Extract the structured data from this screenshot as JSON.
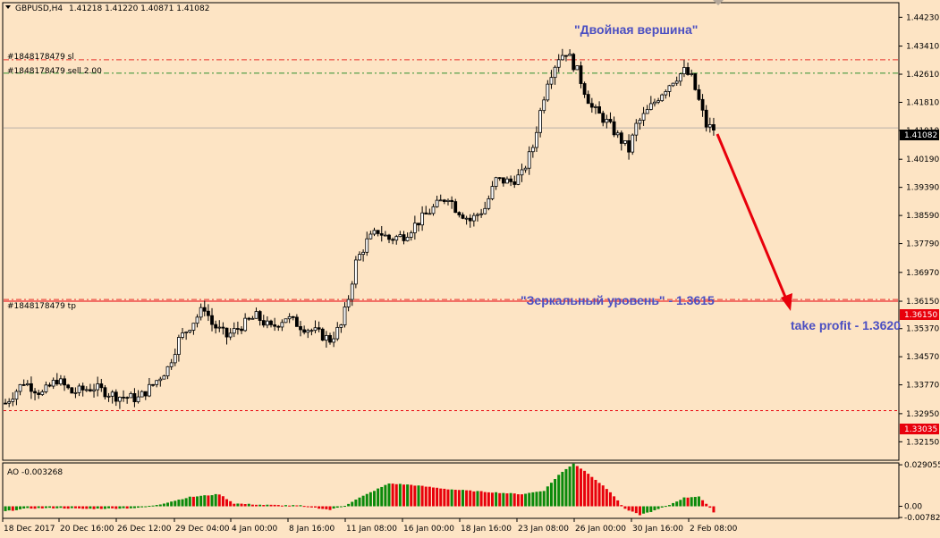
{
  "header": {
    "symbol": "GBPUSD,H4",
    "ohlc": "1.41218 1.41220 1.40871 1.41082"
  },
  "orders": {
    "sl": {
      "label": "#1848178479 sl",
      "price": 1.4302,
      "color": "#e8302a"
    },
    "sell": {
      "label": "#1848178479 sell 2.00",
      "price": 1.4264,
      "color": "#2f8f2f"
    },
    "tp": {
      "label": "#1848178479 tp",
      "price": 1.362,
      "color": "#e8302a"
    }
  },
  "levels": {
    "current": {
      "price": 1.41082,
      "label": "1.41082",
      "bg": "#000000"
    },
    "mirror": {
      "price": 1.3615,
      "label": "1.36150",
      "bg": "#e8000b"
    },
    "support": {
      "price": 1.33035,
      "label": "1.33035",
      "bg": "#e8000b"
    }
  },
  "annotations": {
    "double_top": "\"Двойная вершина\"",
    "mirror_level": "\"Зеркальный уровень\" - 1.3615",
    "take_profit": "take profit - 1.3620"
  },
  "chart_data": {
    "type": "candlestick",
    "symbol": "GBPUSD",
    "timeframe": "H4",
    "ylim": [
      1.3165,
      1.4462
    ],
    "y_ticks": [
      "1.44230",
      "1.43410",
      "1.42610",
      "1.41810",
      "1.41010",
      "1.40190",
      "1.39390",
      "1.38590",
      "1.37790",
      "1.36970",
      "1.36150",
      "1.35370",
      "1.34570",
      "1.33770",
      "1.32950",
      "1.32150"
    ],
    "x_ticks": [
      "18 Dec 2017",
      "20 Dec 16:00",
      "26 Dec 12:00",
      "29 Dec 04:00",
      "4 Jan 00:00",
      "8 Jan 16:00",
      "11 Jan 08:00",
      "16 Jan 00:00",
      "18 Jan 16:00",
      "23 Jan 08:00",
      "26 Jan 00:00",
      "30 Jan 16:00",
      "2 Feb 08:00"
    ],
    "close_path": [
      [
        0,
        1.3325
      ],
      [
        5,
        1.3385
      ],
      [
        10,
        1.3352
      ],
      [
        14,
        1.3392
      ],
      [
        18,
        1.3355
      ],
      [
        24,
        1.337
      ],
      [
        30,
        1.3345
      ],
      [
        36,
        1.3338
      ],
      [
        40,
        1.3378
      ],
      [
        44,
        1.3425
      ],
      [
        47,
        1.3505
      ],
      [
        50,
        1.3545
      ],
      [
        54,
        1.3598
      ],
      [
        56,
        1.355
      ],
      [
        60,
        1.3515
      ],
      [
        64,
        1.3545
      ],
      [
        68,
        1.3572
      ],
      [
        72,
        1.3538
      ],
      [
        76,
        1.357
      ],
      [
        80,
        1.3545
      ],
      [
        84,
        1.3528
      ],
      [
        88,
        1.3505
      ],
      [
        91,
        1.3545
      ],
      [
        93,
        1.3625
      ],
      [
        95,
        1.3725
      ],
      [
        98,
        1.3785
      ],
      [
        101,
        1.3815
      ],
      [
        104,
        1.3792
      ],
      [
        108,
        1.3802
      ],
      [
        112,
        1.3842
      ],
      [
        116,
        1.388
      ],
      [
        120,
        1.3915
      ],
      [
        122,
        1.388
      ],
      [
        126,
        1.3845
      ],
      [
        130,
        1.388
      ],
      [
        133,
        1.396
      ],
      [
        137,
        1.3955
      ],
      [
        140,
        1.3975
      ],
      [
        143,
        1.4055
      ],
      [
        145,
        1.4155
      ],
      [
        147,
        1.4245
      ],
      [
        150,
        1.431
      ],
      [
        152,
        1.4325
      ],
      [
        155,
        1.427
      ],
      [
        157,
        1.4215
      ],
      [
        159,
        1.4165
      ],
      [
        163,
        1.4125
      ],
      [
        166,
        1.4085
      ],
      [
        169,
        1.4045
      ],
      [
        171,
        1.4115
      ],
      [
        174,
        1.4155
      ],
      [
        178,
        1.421
      ],
      [
        181,
        1.4245
      ],
      [
        184,
        1.427
      ],
      [
        186,
        1.425
      ],
      [
        188,
        1.4185
      ],
      [
        190,
        1.4115
      ],
      [
        192,
        1.4105
      ]
    ],
    "ao": {
      "name": "AO",
      "value_label": "AO -0.003268",
      "ylim": [
        -0.0078,
        0.0291
      ],
      "y_ticks": [
        "0.029055",
        "0.00",
        "-0.007829"
      ],
      "path": [
        [
          0,
          -0.0035
        ],
        [
          6,
          -0.0015
        ],
        [
          14,
          -0.0012
        ],
        [
          22,
          -0.0018
        ],
        [
          30,
          -0.0015
        ],
        [
          36,
          -0.0012
        ],
        [
          42,
          0.0015
        ],
        [
          50,
          0.0065
        ],
        [
          58,
          0.0085
        ],
        [
          62,
          0.002
        ],
        [
          70,
          0.001
        ],
        [
          80,
          0.0005
        ],
        [
          88,
          -0.0025
        ],
        [
          92,
          0.0005
        ],
        [
          96,
          0.006
        ],
        [
          104,
          0.016
        ],
        [
          110,
          0.015
        ],
        [
          120,
          0.012
        ],
        [
          128,
          0.0105
        ],
        [
          134,
          0.0095
        ],
        [
          140,
          0.0085
        ],
        [
          146,
          0.011
        ],
        [
          150,
          0.022
        ],
        [
          154,
          0.03
        ],
        [
          158,
          0.023
        ],
        [
          164,
          0.01
        ],
        [
          168,
          -0.002
        ],
        [
          172,
          -0.006
        ],
        [
          176,
          -0.003
        ],
        [
          180,
          0.001
        ],
        [
          184,
          0.006
        ],
        [
          188,
          0.007
        ],
        [
          192,
          -0.004
        ]
      ],
      "up_color": "#0b8a0b",
      "down_color": "#e8000b"
    }
  }
}
